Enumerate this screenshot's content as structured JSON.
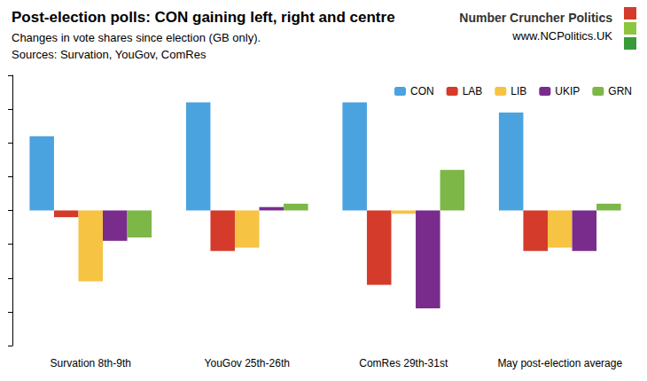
{
  "chart_data": {
    "type": "bar",
    "title": "Post-election polls: CON gaining left, right and centre",
    "subtitle": "Changes in vote shares since election (GB only).",
    "source": "Sources: Survation, YouGov, ComRes",
    "annotations": [
      "Number Cruncher Politics",
      "www.NCPolitics.UK"
    ],
    "categories": [
      "Survation 8th-9th",
      "YouGov 25th-26th",
      "ComRes 29th-31st",
      "May post-election average"
    ],
    "series": [
      {
        "name": "CON",
        "color": "#4aa3df",
        "values": [
          2.2,
          3.2,
          3.2,
          2.9
        ]
      },
      {
        "name": "LAB",
        "color": "#d43b2b",
        "values": [
          -0.2,
          -1.2,
          -2.2,
          -1.2
        ]
      },
      {
        "name": "LIB",
        "color": "#f6c343",
        "values": [
          -2.1,
          -1.1,
          -0.1,
          -1.1
        ]
      },
      {
        "name": "UKIP",
        "color": "#7a2c8c",
        "values": [
          -0.9,
          0.1,
          -2.9,
          -1.2
        ]
      },
      {
        "name": "GRN",
        "color": "#7cb748",
        "values": [
          -0.8,
          0.2,
          1.2,
          0.2
        ]
      }
    ],
    "ylim": [
      -4,
      4
    ],
    "yticks": [
      -4,
      -3,
      -2,
      -1,
      0,
      1,
      2,
      3,
      4
    ],
    "grid": false,
    "legend": "upper right",
    "tick_labels": "x"
  }
}
